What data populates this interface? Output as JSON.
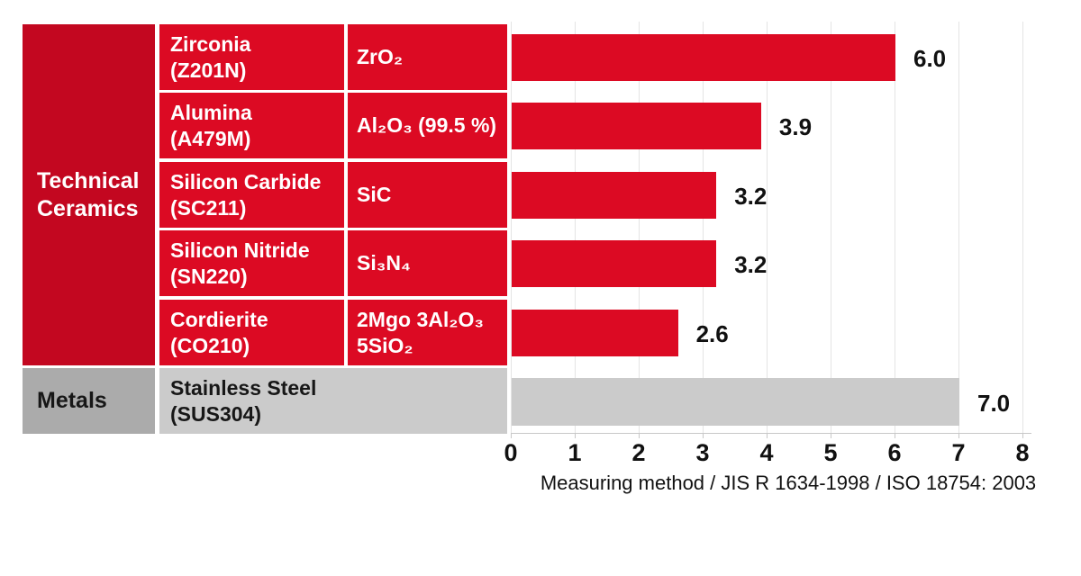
{
  "colors": {
    "header_red": "#c30720",
    "cell_red": "#dc0a23",
    "header_gray": "#ababab",
    "cell_gray": "#cbcbcb",
    "grid": "#e4e4e4",
    "axis": "#c8c8c8",
    "dark_text": "#171717"
  },
  "table": {
    "categories": [
      {
        "label": "Technical Ceramics"
      },
      {
        "label": "Metals"
      }
    ],
    "rows": [
      {
        "group": "Technical Ceramics",
        "name": "Zirconia",
        "code": "(Z201N)",
        "formula_line1": "ZrO₂",
        "formula_line2": "",
        "value_label": "6.0"
      },
      {
        "group": "Technical Ceramics",
        "name": "Alumina",
        "code": "(A479M)",
        "formula_line1": "Al₂O₃ (99.5 %)",
        "formula_line2": "",
        "value_label": "3.9"
      },
      {
        "group": "Technical Ceramics",
        "name": "Silicon Carbide",
        "code": "(SC211)",
        "formula_line1": "SiC",
        "formula_line2": "",
        "value_label": "3.2"
      },
      {
        "group": "Technical Ceramics",
        "name": "Silicon Nitride",
        "code": "(SN220)",
        "formula_line1": "Si₃N₄",
        "formula_line2": "",
        "value_label": "3.2"
      },
      {
        "group": "Technical Ceramics",
        "name": "Cordierite",
        "code": "(CO210)",
        "formula_line1": "2Mgo 3Al₂O₃",
        "formula_line2": "5SiO₂",
        "value_label": "2.6"
      },
      {
        "group": "Metals",
        "name": "Stainless Steel",
        "code": "(SUS304)",
        "formula_line1": "",
        "formula_line2": "",
        "value_label": "7.0"
      }
    ]
  },
  "axis": {
    "tick_labels": [
      "0",
      "1",
      "2",
      "3",
      "4",
      "5",
      "6",
      "7",
      "8"
    ],
    "caption": "Measuring method / JIS R 1634-1998 / ISO 18754: 2003"
  },
  "chart_data": {
    "type": "bar",
    "orientation": "horizontal",
    "title": "",
    "xlabel": "Measuring method / JIS R 1634-1998 / ISO 18754: 2003",
    "ylabel": "",
    "xlim": [
      0,
      8
    ],
    "xticks": [
      0,
      1,
      2,
      3,
      4,
      5,
      6,
      7,
      8
    ],
    "grid": true,
    "legend": "none",
    "categories": [
      "Zirconia (Z201N) ZrO2",
      "Alumina (A479M) Al2O3 (99.5 %)",
      "Silicon Carbide (SC211) SiC",
      "Silicon Nitride (SN220) Si3N4",
      "Cordierite (CO210) 2Mgo 3Al2O3 5SiO2",
      "Stainless Steel (SUS304)"
    ],
    "values": [
      6.0,
      3.9,
      3.2,
      3.2,
      2.6,
      7.0
    ],
    "series_groups": [
      "Technical Ceramics",
      "Technical Ceramics",
      "Technical Ceramics",
      "Technical Ceramics",
      "Technical Ceramics",
      "Metals"
    ],
    "bar_colors": [
      "#dc0a23",
      "#dc0a23",
      "#dc0a23",
      "#dc0a23",
      "#dc0a23",
      "#cbcbcb"
    ]
  }
}
